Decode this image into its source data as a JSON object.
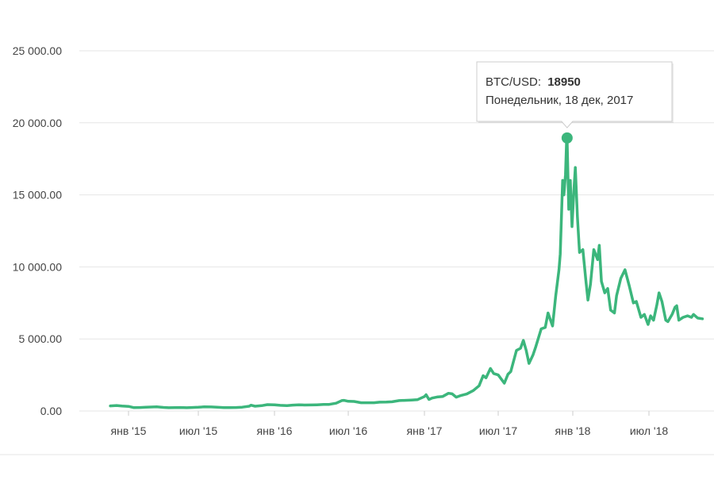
{
  "chart_data": {
    "type": "line",
    "x_tick_labels": [
      "янв '15",
      "июл '15",
      "янв '16",
      "июл '16",
      "янв '17",
      "июл '17",
      "янв '18",
      "июл '18"
    ],
    "y_tick_labels": [
      "0.00",
      "5 000.00",
      "10 000.00",
      "15 000.00",
      "20 000.00",
      "25 000.00"
    ],
    "ylim": [
      0,
      25000
    ],
    "grid": true,
    "line_color": "#3cb67c",
    "series": [
      {
        "points": [
          [
            "2014-11-15",
            350
          ],
          [
            "2014-12-01",
            380
          ],
          [
            "2014-12-15",
            340
          ],
          [
            "2015-01-01",
            320
          ],
          [
            "2015-01-15",
            230
          ],
          [
            "2015-02-01",
            240
          ],
          [
            "2015-02-15",
            260
          ],
          [
            "2015-03-01",
            275
          ],
          [
            "2015-03-15",
            285
          ],
          [
            "2015-04-01",
            250
          ],
          [
            "2015-04-15",
            225
          ],
          [
            "2015-05-01",
            235
          ],
          [
            "2015-05-15",
            240
          ],
          [
            "2015-06-01",
            225
          ],
          [
            "2015-06-15",
            245
          ],
          [
            "2015-07-01",
            260
          ],
          [
            "2015-07-15",
            285
          ],
          [
            "2015-08-01",
            280
          ],
          [
            "2015-08-15",
            260
          ],
          [
            "2015-09-01",
            230
          ],
          [
            "2015-09-15",
            230
          ],
          [
            "2015-10-01",
            240
          ],
          [
            "2015-10-15",
            265
          ],
          [
            "2015-11-01",
            330
          ],
          [
            "2015-11-05",
            400
          ],
          [
            "2015-11-15",
            330
          ],
          [
            "2015-12-01",
            370
          ],
          [
            "2015-12-15",
            440
          ],
          [
            "2016-01-01",
            430
          ],
          [
            "2016-01-15",
            390
          ],
          [
            "2016-02-01",
            375
          ],
          [
            "2016-02-15",
            405
          ],
          [
            "2016-03-01",
            430
          ],
          [
            "2016-03-15",
            415
          ],
          [
            "2016-04-01",
            420
          ],
          [
            "2016-04-15",
            430
          ],
          [
            "2016-05-01",
            450
          ],
          [
            "2016-05-15",
            455
          ],
          [
            "2016-06-01",
            540
          ],
          [
            "2016-06-15",
            720
          ],
          [
            "2016-06-20",
            740
          ],
          [
            "2016-07-01",
            670
          ],
          [
            "2016-07-15",
            660
          ],
          [
            "2016-08-01",
            570
          ],
          [
            "2016-08-15",
            575
          ],
          [
            "2016-09-01",
            575
          ],
          [
            "2016-09-15",
            610
          ],
          [
            "2016-10-01",
            615
          ],
          [
            "2016-10-15",
            640
          ],
          [
            "2016-11-01",
            720
          ],
          [
            "2016-11-15",
            740
          ],
          [
            "2016-12-01",
            760
          ],
          [
            "2016-12-15",
            780
          ],
          [
            "2017-01-01",
            1000
          ],
          [
            "2017-01-05",
            1130
          ],
          [
            "2017-01-12",
            800
          ],
          [
            "2017-01-20",
            900
          ],
          [
            "2017-02-01",
            970
          ],
          [
            "2017-02-15",
            1010
          ],
          [
            "2017-03-01",
            1230
          ],
          [
            "2017-03-10",
            1190
          ],
          [
            "2017-03-20",
            960
          ],
          [
            "2017-04-01",
            1080
          ],
          [
            "2017-04-15",
            1180
          ],
          [
            "2017-05-01",
            1420
          ],
          [
            "2017-05-15",
            1750
          ],
          [
            "2017-05-25",
            2450
          ],
          [
            "2017-06-01",
            2300
          ],
          [
            "2017-06-12",
            2950
          ],
          [
            "2017-06-20",
            2600
          ],
          [
            "2017-07-01",
            2500
          ],
          [
            "2017-07-16",
            1930
          ],
          [
            "2017-07-25",
            2550
          ],
          [
            "2017-08-01",
            2730
          ],
          [
            "2017-08-15",
            4200
          ],
          [
            "2017-08-25",
            4350
          ],
          [
            "2017-09-01",
            4900
          ],
          [
            "2017-09-08",
            4200
          ],
          [
            "2017-09-15",
            3300
          ],
          [
            "2017-09-25",
            3900
          ],
          [
            "2017-10-01",
            4400
          ],
          [
            "2017-10-15",
            5700
          ],
          [
            "2017-10-25",
            5800
          ],
          [
            "2017-11-01",
            6800
          ],
          [
            "2017-11-12",
            5900
          ],
          [
            "2017-11-20",
            8000
          ],
          [
            "2017-11-28",
            9800
          ],
          [
            "2017-12-01",
            10900
          ],
          [
            "2017-12-07",
            16000
          ],
          [
            "2017-12-10",
            15000
          ],
          [
            "2017-12-14",
            16400
          ],
          [
            "2017-12-17",
            18950
          ],
          [
            "2017-12-18",
            18950
          ],
          [
            "2017-12-22",
            14000
          ],
          [
            "2017-12-26",
            16000
          ],
          [
            "2017-12-30",
            12800
          ],
          [
            "2018-01-04",
            15500
          ],
          [
            "2018-01-07",
            16900
          ],
          [
            "2018-01-12",
            13500
          ],
          [
            "2018-01-17",
            11000
          ],
          [
            "2018-01-25",
            11200
          ],
          [
            "2018-02-01",
            9100
          ],
          [
            "2018-02-06",
            7700
          ],
          [
            "2018-02-12",
            8800
          ],
          [
            "2018-02-20",
            11200
          ],
          [
            "2018-03-01",
            10500
          ],
          [
            "2018-03-05",
            11500
          ],
          [
            "2018-03-10",
            9000
          ],
          [
            "2018-03-18",
            8200
          ],
          [
            "2018-03-25",
            8500
          ],
          [
            "2018-04-01",
            7000
          ],
          [
            "2018-04-10",
            6800
          ],
          [
            "2018-04-15",
            8000
          ],
          [
            "2018-04-25",
            9200
          ],
          [
            "2018-05-05",
            9800
          ],
          [
            "2018-05-15",
            8700
          ],
          [
            "2018-05-25",
            7500
          ],
          [
            "2018-06-01",
            7600
          ],
          [
            "2018-06-12",
            6500
          ],
          [
            "2018-06-20",
            6700
          ],
          [
            "2018-06-29",
            6000
          ],
          [
            "2018-07-05",
            6600
          ],
          [
            "2018-07-12",
            6300
          ],
          [
            "2018-07-20",
            7400
          ],
          [
            "2018-07-25",
            8200
          ],
          [
            "2018-08-01",
            7600
          ],
          [
            "2018-08-10",
            6300
          ],
          [
            "2018-08-15",
            6200
          ],
          [
            "2018-08-25",
            6700
          ],
          [
            "2018-09-01",
            7200
          ],
          [
            "2018-09-05",
            7300
          ],
          [
            "2018-09-10",
            6300
          ],
          [
            "2018-09-20",
            6500
          ],
          [
            "2018-10-01",
            6600
          ],
          [
            "2018-10-10",
            6500
          ],
          [
            "2018-10-15",
            6700
          ],
          [
            "2018-10-25",
            6450
          ],
          [
            "2018-11-05",
            6400
          ]
        ]
      }
    ],
    "highlight": {
      "date": "2017-12-18",
      "value": 18950
    },
    "tooltip": {
      "label": "BTC/USD:",
      "value": "18950",
      "date_text": "Понедельник, 18 дек, 2017"
    }
  }
}
